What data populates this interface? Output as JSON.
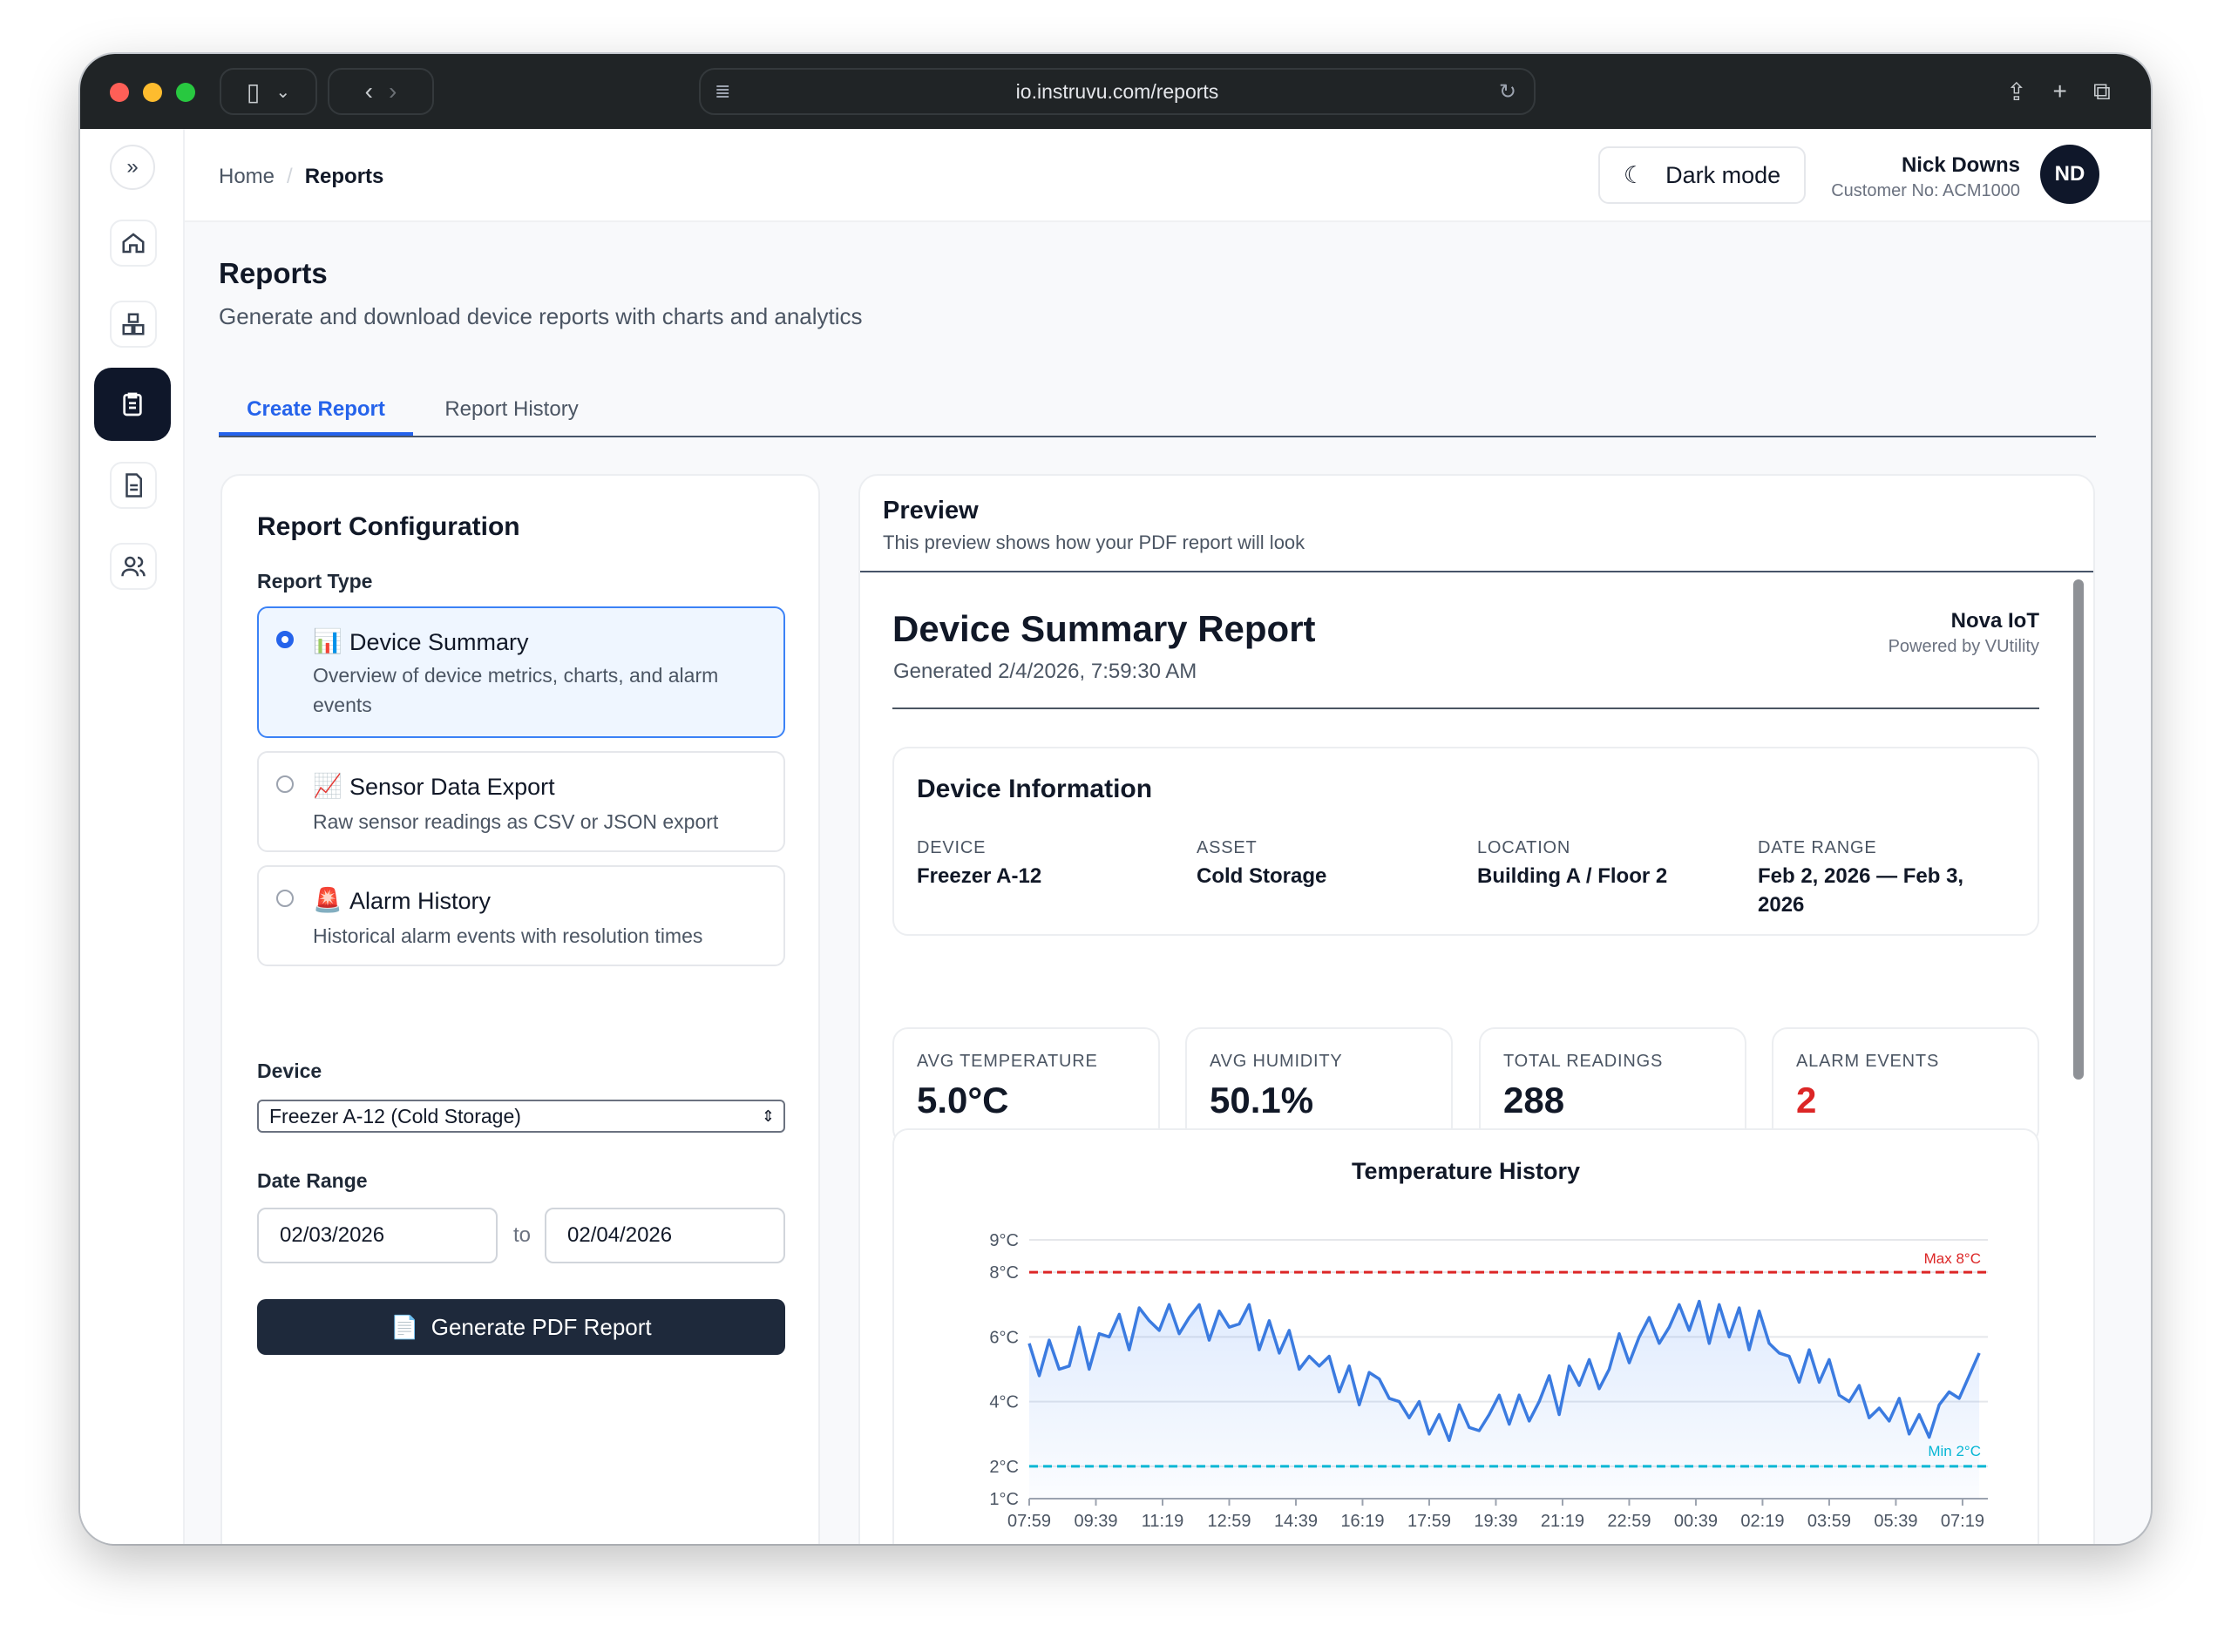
{
  "browser": {
    "url": "io.instruvu.com/reports"
  },
  "header": {
    "breadcrumb": [
      "Home",
      "/",
      "Reports"
    ],
    "dark_mode_label": "Dark mode",
    "user_name": "Nick Downs",
    "customer_no": "Customer No: ACM1000",
    "avatar_initials": "ND"
  },
  "sidebar": {
    "items": [
      "expand",
      "home",
      "devices",
      "reports",
      "documents",
      "users"
    ]
  },
  "page": {
    "title": "Reports",
    "subtitle": "Generate and download device reports with charts and analytics",
    "tabs": [
      "Create Report",
      "Report History"
    ]
  },
  "config": {
    "title": "Report Configuration",
    "report_type_label": "Report Type",
    "options": [
      {
        "emoji": "📊",
        "title": "Device Summary",
        "desc": "Overview of device metrics, charts, and alarm events",
        "selected": true
      },
      {
        "emoji": "📈",
        "title": "Sensor Data Export",
        "desc": "Raw sensor readings as CSV or JSON export",
        "selected": false
      },
      {
        "emoji": "🚨",
        "title": "Alarm History",
        "desc": "Historical alarm events with resolution times",
        "selected": false
      }
    ],
    "device_label": "Device",
    "device_value": "Freezer A-12 (Cold Storage)",
    "date_range_label": "Date Range",
    "date_from": "02/03/2026",
    "date_to_sep": "to",
    "date_to": "02/04/2026",
    "generate_label": "Generate PDF Report",
    "generate_icon": "📄"
  },
  "preview": {
    "title": "Preview",
    "subtitle": "This preview shows how your PDF report will look",
    "report_title": "Device Summary Report",
    "generated": "Generated 2/4/2026, 7:59:30 AM",
    "brand": "Nova IoT",
    "powered_by": "Powered by VUtility",
    "device_info": {
      "title": "Device Information",
      "fields": [
        {
          "label": "DEVICE",
          "value": "Freezer A-12"
        },
        {
          "label": "ASSET",
          "value": "Cold Storage"
        },
        {
          "label": "LOCATION",
          "value": "Building A / Floor 2"
        },
        {
          "label": "DATE RANGE",
          "value": "Feb 2, 2026 — Feb 3, 2026"
        }
      ]
    },
    "stats": [
      {
        "label": "AVG TEMPERATURE",
        "value": "5.0°C"
      },
      {
        "label": "AVG HUMIDITY",
        "value": "50.1%"
      },
      {
        "label": "TOTAL READINGS",
        "value": "288"
      },
      {
        "label": "ALARM EVENTS",
        "value": "2",
        "color": "#dc2626"
      }
    ]
  },
  "chart_data": {
    "type": "line",
    "title": "Temperature History",
    "xlabel": "",
    "ylabel": "",
    "ylim": [
      1,
      9
    ],
    "xlim_minutes": [
      0,
      1438
    ],
    "x_step_minutes": 15,
    "y_ticks": [
      "9°C",
      "8°C",
      "6°C",
      "4°C",
      "2°C",
      "1°C"
    ],
    "y_tick_values": [
      9,
      8,
      6,
      4,
      2,
      1
    ],
    "x_ticks": [
      "07:59",
      "09:39",
      "11:19",
      "12:59",
      "14:39",
      "16:19",
      "17:59",
      "19:39",
      "21:19",
      "22:59",
      "00:39",
      "02:19",
      "03:59",
      "05:39",
      "07:19"
    ],
    "thresholds": [
      {
        "label": "Max 8°C",
        "value": 8,
        "color": "#dc2626"
      },
      {
        "label": "Min 2°C",
        "value": 2,
        "color": "#06b6d4"
      }
    ],
    "series": [
      {
        "name": "Temperature",
        "color": "#3b7be0",
        "values": [
          5.8,
          4.8,
          5.9,
          5.0,
          5.1,
          6.3,
          5.0,
          6.1,
          6.0,
          6.7,
          5.6,
          6.9,
          6.5,
          6.2,
          7.0,
          6.1,
          6.6,
          7.0,
          5.9,
          6.8,
          6.3,
          6.4,
          7.0,
          5.6,
          6.5,
          5.5,
          6.2,
          5.0,
          5.4,
          5.1,
          5.4,
          4.3,
          5.1,
          3.9,
          4.9,
          4.7,
          4.1,
          4.0,
          3.5,
          4.0,
          3.0,
          3.6,
          2.8,
          3.9,
          3.2,
          3.1,
          3.6,
          4.2,
          3.3,
          4.2,
          3.4,
          4.0,
          4.8,
          3.6,
          5.1,
          4.5,
          5.3,
          4.4,
          5.0,
          6.1,
          5.2,
          6.0,
          6.6,
          5.8,
          6.3,
          7.0,
          6.2,
          7.1,
          5.8,
          7.0,
          6.0,
          6.9,
          5.6,
          6.8,
          5.8,
          5.5,
          5.4,
          4.6,
          5.6,
          4.6,
          5.3,
          4.2,
          4.0,
          4.5,
          3.5,
          3.8,
          3.4,
          4.1,
          3.0,
          3.6,
          2.9,
          3.9,
          4.3,
          4.1,
          4.8,
          5.5
        ]
      }
    ]
  }
}
